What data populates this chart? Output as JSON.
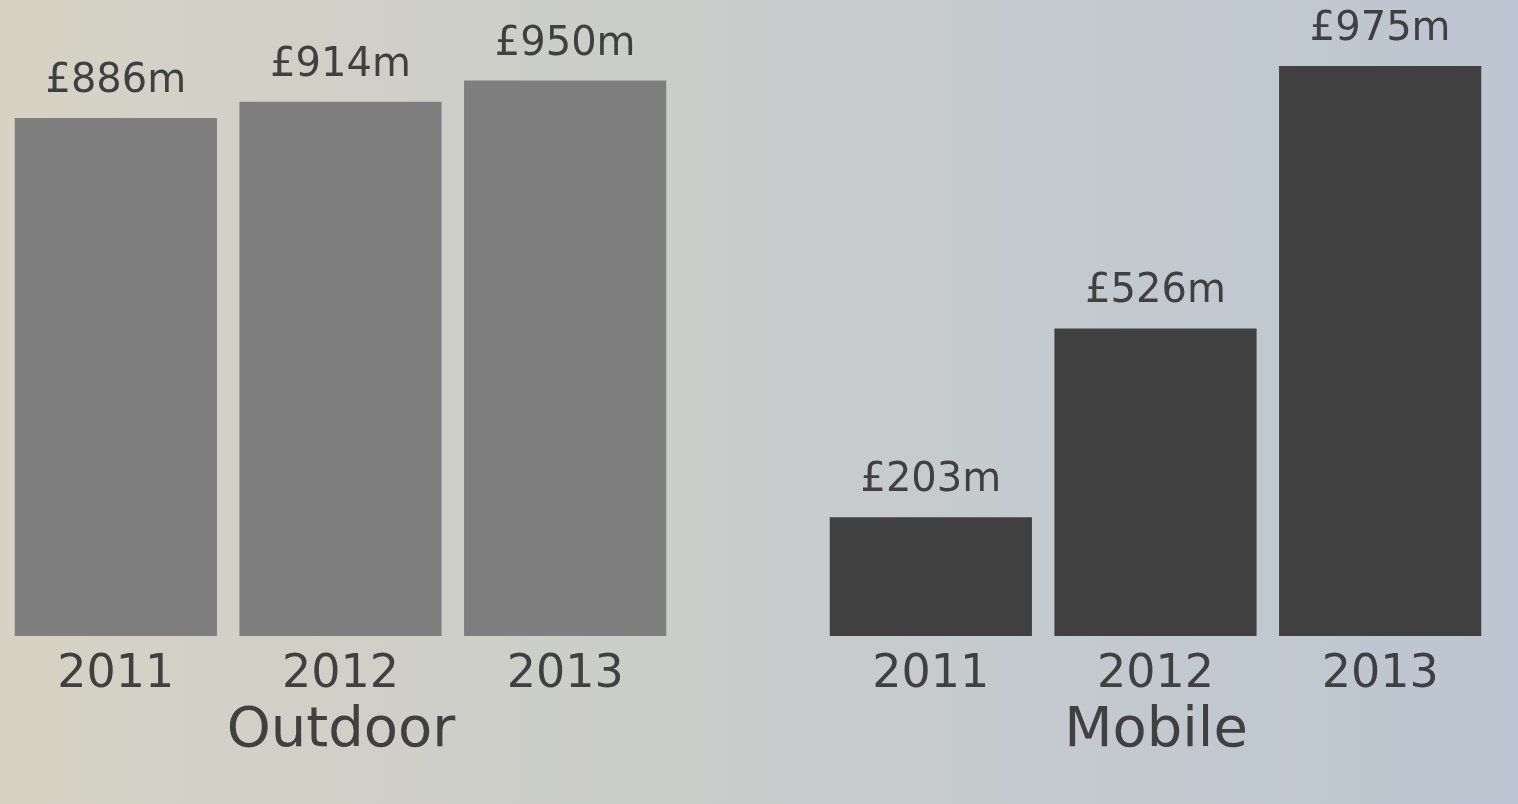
{
  "chart_data": [
    {
      "type": "bar",
      "xlabel": "Outdoor",
      "categories": [
        "2011",
        "2012",
        "2013"
      ],
      "values": [
        886,
        914,
        950
      ],
      "value_labels": [
        "£886m",
        "£914m",
        "£950m"
      ],
      "color": "#7f7f7f"
    },
    {
      "type": "bar",
      "xlabel": "Mobile",
      "categories": [
        "2011",
        "2012",
        "2013"
      ],
      "values": [
        203,
        526,
        975
      ],
      "value_labels": [
        "£203m",
        "£526m",
        "£975m"
      ],
      "color": "#404040"
    }
  ]
}
